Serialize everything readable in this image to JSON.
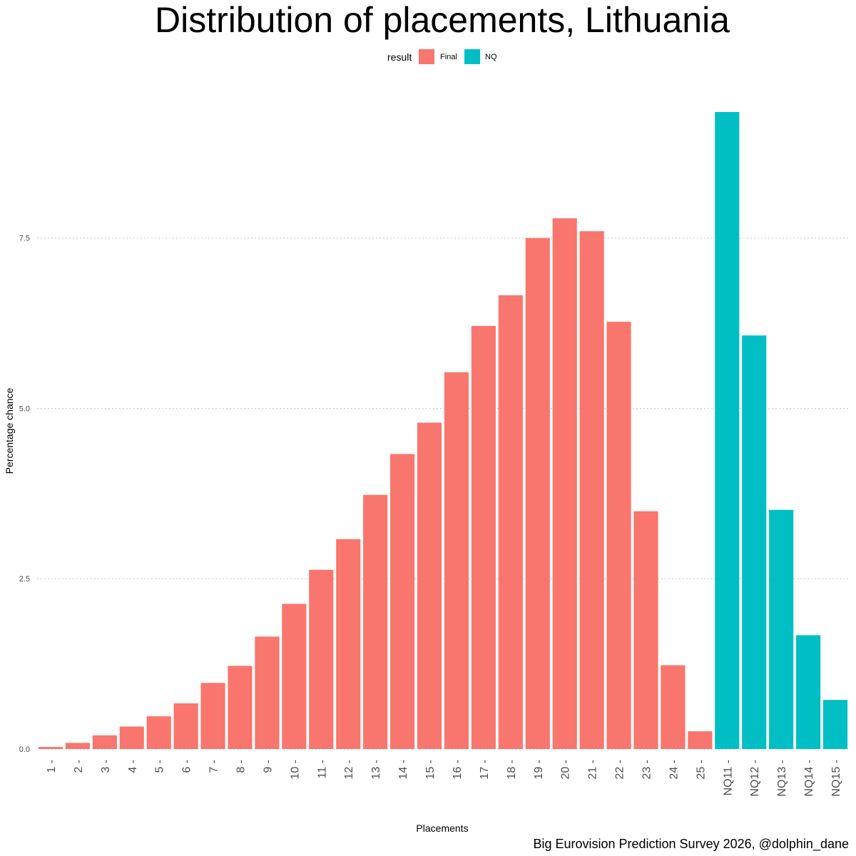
{
  "chart_data": {
    "type": "bar",
    "title": "Distribution of placements, Lithuania",
    "xlabel": "Placements",
    "ylabel": "Percentage chance",
    "caption": "Big Eurovision Prediction Survey 2026, @dolphin_dane",
    "legend": {
      "title": "result",
      "position": "top",
      "entries": [
        {
          "name": "Final",
          "color": "#F8766D"
        },
        {
          "name": "NQ",
          "color": "#00BFC4"
        }
      ]
    },
    "yticks": [
      {
        "value": 0,
        "label": "0.0"
      },
      {
        "value": 2.5,
        "label": "2.5"
      },
      {
        "value": 5,
        "label": "5.0"
      },
      {
        "value": 7.5,
        "label": "7.5"
      }
    ],
    "ylim": [
      0,
      9.35
    ],
    "grid": "horizontal dotted",
    "categories": [
      "1",
      "2",
      "3",
      "4",
      "5",
      "6",
      "7",
      "8",
      "9",
      "10",
      "11",
      "12",
      "13",
      "14",
      "15",
      "16",
      "17",
      "18",
      "19",
      "20",
      "21",
      "22",
      "23",
      "24",
      "25",
      "NQ11",
      "NQ12",
      "NQ13",
      "NQ14",
      "NQ15"
    ],
    "results": [
      "Final",
      "Final",
      "Final",
      "Final",
      "Final",
      "Final",
      "Final",
      "Final",
      "Final",
      "Final",
      "Final",
      "Final",
      "Final",
      "Final",
      "Final",
      "Final",
      "Final",
      "Final",
      "Final",
      "Final",
      "Final",
      "Final",
      "Final",
      "Final",
      "Final",
      "NQ",
      "NQ",
      "NQ",
      "NQ",
      "NQ"
    ],
    "values": [
      0.03,
      0.09,
      0.2,
      0.33,
      0.48,
      0.67,
      0.97,
      1.22,
      1.65,
      2.13,
      2.63,
      3.08,
      3.73,
      4.33,
      4.79,
      5.53,
      6.21,
      6.66,
      7.5,
      7.79,
      7.6,
      6.27,
      3.49,
      1.23,
      0.26,
      9.35,
      6.07,
      3.51,
      1.67,
      0.72
    ]
  }
}
